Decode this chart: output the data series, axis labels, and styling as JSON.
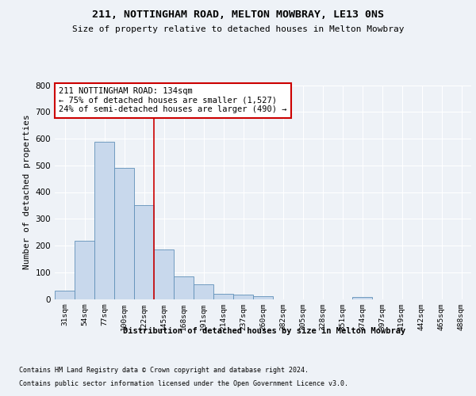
{
  "title1": "211, NOTTINGHAM ROAD, MELTON MOWBRAY, LE13 0NS",
  "title2": "Size of property relative to detached houses in Melton Mowbray",
  "xlabel": "Distribution of detached houses by size in Melton Mowbray",
  "ylabel": "Number of detached properties",
  "categories": [
    "31sqm",
    "54sqm",
    "77sqm",
    "100sqm",
    "122sqm",
    "145sqm",
    "168sqm",
    "191sqm",
    "214sqm",
    "237sqm",
    "260sqm",
    "282sqm",
    "305sqm",
    "328sqm",
    "351sqm",
    "374sqm",
    "397sqm",
    "419sqm",
    "442sqm",
    "465sqm",
    "488sqm"
  ],
  "values": [
    32,
    217,
    588,
    490,
    350,
    185,
    83,
    55,
    20,
    15,
    10,
    0,
    0,
    0,
    0,
    8,
    0,
    0,
    0,
    0,
    0
  ],
  "bar_color": "#c8d8ec",
  "bar_edgecolor": "#6090b8",
  "vline_x": 4.5,
  "vline_color": "#cc0000",
  "annotation_text": "211 NOTTINGHAM ROAD: 134sqm\n← 75% of detached houses are smaller (1,527)\n24% of semi-detached houses are larger (490) →",
  "annotation_box_color": "white",
  "annotation_box_edgecolor": "#cc0000",
  "footnote1": "Contains HM Land Registry data © Crown copyright and database right 2024.",
  "footnote2": "Contains public sector information licensed under the Open Government Licence v3.0.",
  "background_color": "#eef2f7",
  "ylim": [
    0,
    800
  ],
  "yticks": [
    0,
    100,
    200,
    300,
    400,
    500,
    600,
    700,
    800
  ]
}
